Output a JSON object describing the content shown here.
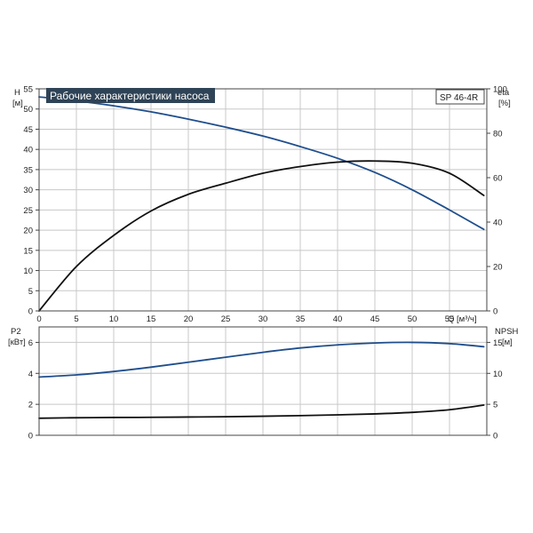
{
  "chart_data": [
    {
      "type": "line",
      "panel": "top",
      "title": "Рабочие характеристики насоса",
      "model": "SP 46-4R",
      "x_axis": {
        "unit": "Q [м³/ч]",
        "range": [
          0,
          60
        ],
        "ticks": [
          0,
          5,
          10,
          15,
          20,
          25,
          30,
          35,
          40,
          45,
          50,
          55
        ]
      },
      "y_left": {
        "name": "H",
        "unit": "[м]",
        "range": [
          0,
          55
        ],
        "ticks": [
          0,
          5,
          10,
          15,
          20,
          25,
          30,
          35,
          40,
          45,
          50,
          55
        ]
      },
      "y_right": {
        "name": "eta",
        "unit": "[%]",
        "range": [
          0,
          100
        ],
        "ticks": [
          0,
          20,
          40,
          60,
          80,
          100
        ]
      },
      "grid": true,
      "series": [
        {
          "axis": "left",
          "color": "#1f4e8c",
          "x": [
            0,
            4.2,
            10,
            15,
            20,
            25,
            30,
            35,
            40,
            45,
            50,
            55,
            59.6
          ],
          "y": [
            53,
            52.2,
            50.8,
            49.3,
            47.5,
            45.5,
            43.3,
            40.7,
            37.8,
            34.3,
            30.0,
            25.0,
            20.2
          ]
        },
        {
          "axis": "right",
          "color": "#111111",
          "x": [
            0,
            5,
            10,
            15,
            20,
            25,
            30,
            35,
            40,
            45,
            50,
            55,
            59.6
          ],
          "y": [
            0,
            20,
            34,
            45,
            52.5,
            57.5,
            62,
            65,
            67,
            67.5,
            66.5,
            62,
            52
          ]
        }
      ]
    },
    {
      "type": "line",
      "panel": "bottom",
      "x_axis": {
        "range": [
          0,
          60
        ],
        "ticks": [
          0,
          5,
          10,
          15,
          20,
          25,
          30,
          35,
          40,
          45,
          50,
          55
        ]
      },
      "y_left": {
        "name": "P2",
        "unit": "[кВт]",
        "range": [
          0,
          7
        ],
        "ticks": [
          0,
          2,
          4,
          6
        ]
      },
      "y_right": {
        "name": "NPSH",
        "unit": "[м]",
        "range": [
          0,
          17.5
        ],
        "ticks": [
          0,
          5,
          10,
          15
        ]
      },
      "grid": true,
      "series": [
        {
          "axis": "right",
          "color": "#1f4e8c",
          "x": [
            0,
            5,
            10,
            15,
            20,
            25,
            30,
            35,
            40,
            45,
            50,
            55,
            59.6
          ],
          "y": [
            9.4,
            9.75,
            10.3,
            11.0,
            11.8,
            12.6,
            13.4,
            14.1,
            14.6,
            14.9,
            15.0,
            14.8,
            14.3
          ]
        },
        {
          "axis": "left",
          "color": "#111111",
          "x": [
            0,
            4.2,
            10,
            15,
            20,
            25,
            30,
            35,
            40,
            45,
            50,
            55,
            59.6
          ],
          "y": [
            1.1,
            1.13,
            1.15,
            1.16,
            1.18,
            1.2,
            1.23,
            1.27,
            1.32,
            1.38,
            1.48,
            1.65,
            1.95
          ]
        }
      ]
    }
  ]
}
